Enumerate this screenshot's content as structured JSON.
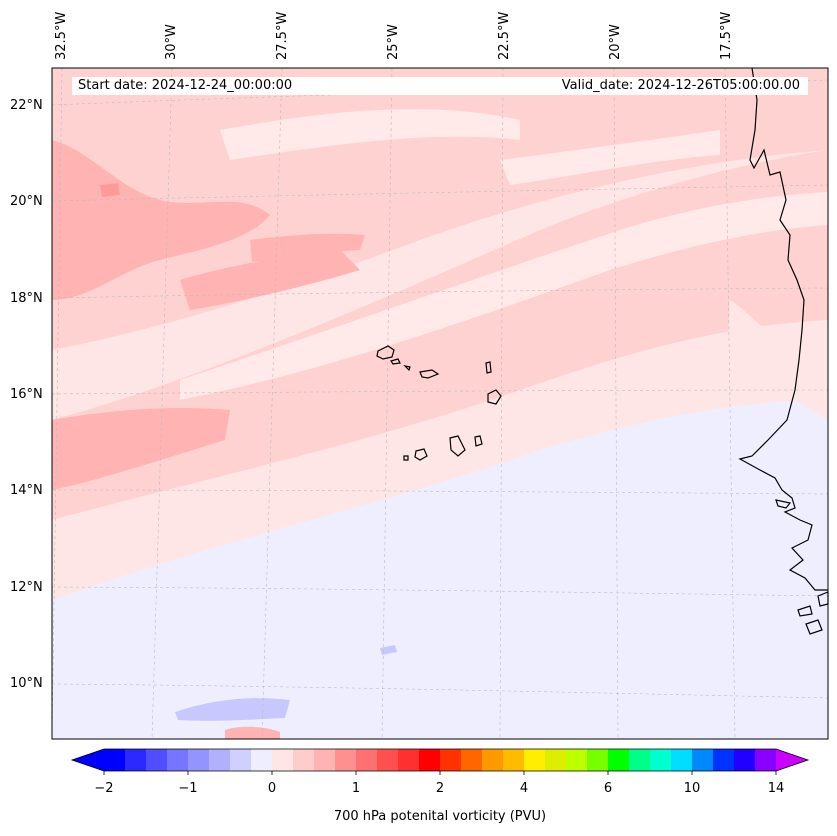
{
  "map": {
    "start_date_label": "Start date: 2024-12-24_00:00:00",
    "valid_date_label": "Valid_date: 2024-12-26T05:00:00.00",
    "longitude_labels": [
      "32.5°W",
      "30°W",
      "27.5°W",
      "25°W",
      "22.5°W",
      "20°W",
      "17.5°W"
    ],
    "latitude_labels": [
      "22°N",
      "20°N",
      "18°N",
      "16°N",
      "14°N",
      "12°N",
      "10°N"
    ],
    "features": [
      "Cape Verde islands",
      "West African coastline"
    ],
    "field_colors": {
      "weak_negative": "#eeeeff",
      "near_zero": "#ffe6e6",
      "small_positive": "#ffd2d2",
      "moderate_positive": "#ffb3b3",
      "strong_positive": "#ff9a9a",
      "weak_blue_patch": "#c8c8ff"
    }
  },
  "colorbar": {
    "label": "700 hPa potenital vorticity (PVU)",
    "tick_labels": [
      "−2",
      "−1",
      "0",
      "1",
      "2",
      "4",
      "6",
      "10",
      "14"
    ],
    "tick_values": [
      -2,
      -1,
      0,
      1,
      2,
      4,
      6,
      10,
      14
    ],
    "colors": [
      "#0000ff",
      "#2a2aff",
      "#4f4fff",
      "#7575ff",
      "#9494ff",
      "#b0b0ff",
      "#d0d0ff",
      "#eeeeff",
      "#ffe6e6",
      "#ffcccc",
      "#ffb3b3",
      "#ff9090",
      "#ff7070",
      "#ff5050",
      "#ff3030",
      "#ff0000",
      "#ff3300",
      "#ff6600",
      "#ff9900",
      "#ffbb00",
      "#ffee00",
      "#ddee00",
      "#bbff00",
      "#77ff00",
      "#00ff00",
      "#00ff88",
      "#00ffcc",
      "#00ddff",
      "#0088ff",
      "#0033ff",
      "#2200ff",
      "#8800ff"
    ],
    "min_color": "#0000ff",
    "max_color": "#cc00ff"
  }
}
